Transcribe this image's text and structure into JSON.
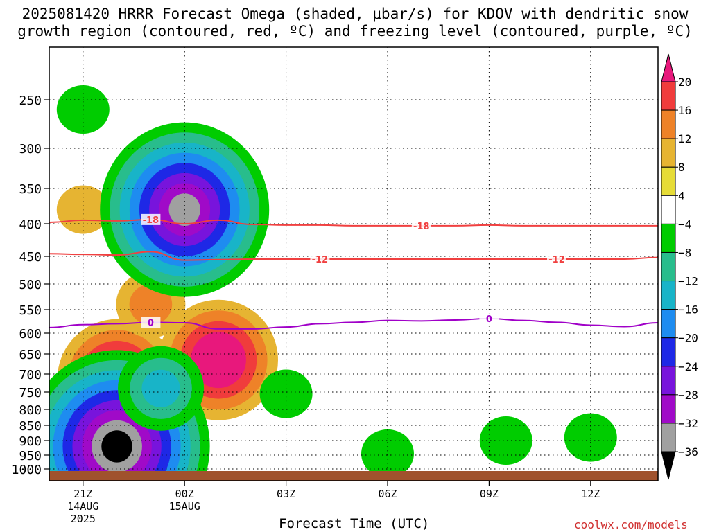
{
  "title": {
    "line1": "2025081420 HRRR Forecast Omega (shaded, μbar/s) for KDOV with dendritic snow",
    "line2": "growth region (contoured, red, ºC) and freezing level (contoured, purple, ºC)"
  },
  "credit": "coolwx.com/models",
  "chart_data": {
    "type": "heatmap",
    "xlabel": "Forecast Time (UTC)",
    "ylabel": "",
    "x_ticks": [
      {
        "hour": 1,
        "label": "21Z",
        "sub1": "14AUG",
        "sub2": "2025"
      },
      {
        "hour": 4,
        "label": "00Z",
        "sub1": "15AUG",
        "sub2": ""
      },
      {
        "hour": 7,
        "label": "03Z",
        "sub1": "",
        "sub2": ""
      },
      {
        "hour": 10,
        "label": "06Z",
        "sub1": "",
        "sub2": ""
      },
      {
        "hour": 13,
        "label": "09Z",
        "sub1": "",
        "sub2": ""
      },
      {
        "hour": 16,
        "label": "12Z",
        "sub1": "",
        "sub2": ""
      }
    ],
    "xlim_hours": [
      0,
      18
    ],
    "y_axis": "pressure (hPa), inverted",
    "ylim": [
      1015,
      200
    ],
    "y_ticks": [
      250,
      300,
      350,
      400,
      450,
      500,
      550,
      600,
      650,
      700,
      750,
      800,
      850,
      900,
      950,
      1000
    ],
    "grid": true,
    "colorbar": {
      "levels": [
        20,
        16,
        12,
        8,
        4,
        -4,
        -8,
        -12,
        -16,
        -20,
        -24,
        -28,
        -32,
        -36
      ],
      "colors": [
        "#e8187c",
        "#f03c3c",
        "#ee8228",
        "#e6b432",
        "#e6dc37",
        "#ffffff",
        "#00cc00",
        "#28bd8c",
        "#18b4c8",
        "#1e8cf0",
        "#1e28e6",
        "#7814dc",
        "#a00ac8",
        "#a0a0a0",
        "#000000"
      ],
      "top_arrow_color": "#e8187c",
      "bottom_arrow_color": "#000000"
    },
    "contours": [
      {
        "name": "-18",
        "color": "#f04040",
        "x_hours": [
          0,
          1,
          2,
          3,
          4,
          5,
          6,
          7,
          8,
          9,
          10,
          11,
          12,
          13,
          14,
          15,
          16,
          17,
          18
        ],
        "y_hpa": [
          398,
          395,
          396,
          394,
          400,
          395,
          401,
          402,
          402,
          403,
          403,
          403,
          403,
          402,
          403,
          403,
          403,
          403,
          403
        ],
        "labels_at_hours": [
          3,
          11
        ]
      },
      {
        "name": "-12",
        "color": "#f04040",
        "x_hours": [
          0,
          1,
          2,
          3,
          4,
          5,
          6,
          7,
          8,
          9,
          10,
          11,
          12,
          13,
          14,
          15,
          16,
          17,
          18
        ],
        "y_hpa": [
          446,
          447,
          448,
          443,
          457,
          456,
          455,
          455,
          455,
          455,
          455,
          455,
          455,
          455,
          455,
          455,
          455,
          455,
          452
        ],
        "labels_at_hours": [
          8,
          15
        ]
      },
      {
        "name": "0",
        "color": "#a000c8",
        "x_hours": [
          0,
          1,
          2,
          3,
          4,
          5,
          6,
          7,
          8,
          9,
          10,
          11,
          12,
          13,
          14,
          15,
          16,
          17,
          18
        ],
        "y_hpa": [
          588,
          582,
          580,
          577,
          578,
          591,
          591,
          587,
          580,
          577,
          573,
          574,
          572,
          569,
          573,
          577,
          583,
          586,
          578
        ],
        "labels_at_hours": [
          3,
          13
        ]
      }
    ],
    "omega_features": [
      {
        "kind": "ascent",
        "hour": 2.0,
        "hpa": 715,
        "peak": 24
      },
      {
        "kind": "ascent",
        "hour": 5.0,
        "hpa": 665,
        "peak": 22
      },
      {
        "kind": "ascent",
        "hour": 1.0,
        "hpa": 380,
        "peak": 6
      },
      {
        "kind": "ascent",
        "hour": 3.0,
        "hpa": 540,
        "peak": 10
      },
      {
        "kind": "descent",
        "hour": 2.0,
        "hpa": 920,
        "peak": -40
      },
      {
        "kind": "descent",
        "hour": 4.0,
        "hpa": 380,
        "peak": -34
      },
      {
        "kind": "descent",
        "hour": 1.0,
        "hpa": 260,
        "peak": -6
      },
      {
        "kind": "descent",
        "hour": 7.0,
        "hpa": 755,
        "peak": -6
      },
      {
        "kind": "descent",
        "hour": 3.3,
        "hpa": 740,
        "peak": -15
      },
      {
        "kind": "descent",
        "hour": 10.0,
        "hpa": 945,
        "peak": -5
      },
      {
        "kind": "descent",
        "hour": 13.5,
        "hpa": 900,
        "peak": -5
      },
      {
        "kind": "descent",
        "hour": 16.0,
        "hpa": 890,
        "peak": -6
      }
    ]
  }
}
